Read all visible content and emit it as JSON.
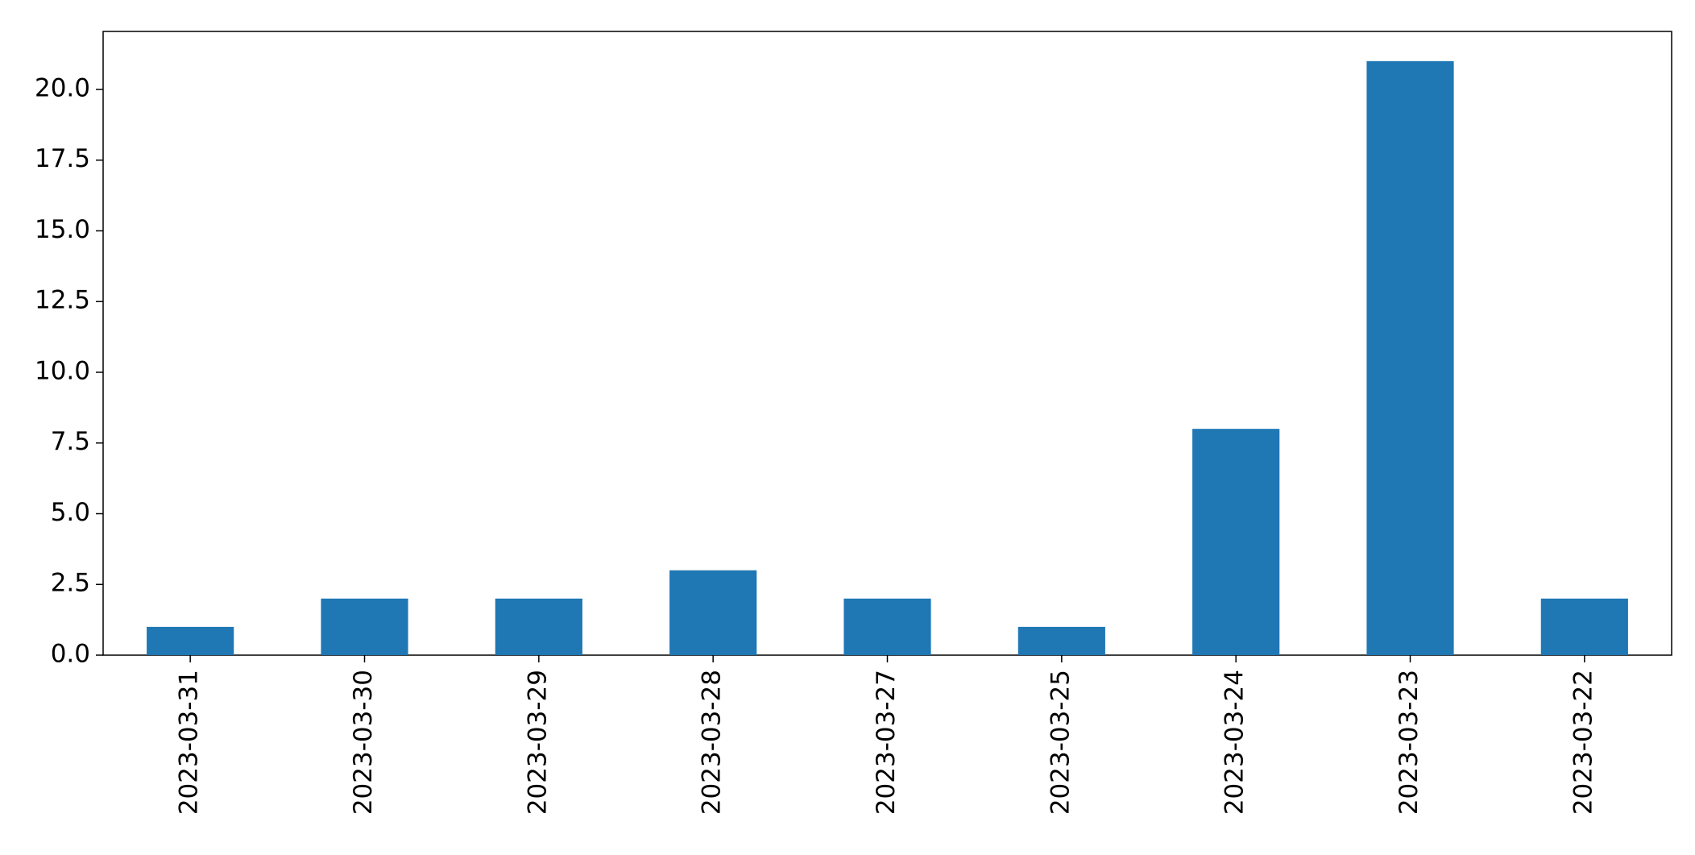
{
  "chart_data": {
    "type": "bar",
    "categories": [
      "2023-03-31",
      "2023-03-30",
      "2023-03-29",
      "2023-03-28",
      "2023-03-27",
      "2023-03-25",
      "2023-03-24",
      "2023-03-23",
      "2023-03-22"
    ],
    "values": [
      1,
      2,
      2,
      3,
      2,
      1,
      8,
      21,
      2
    ],
    "color": "#1f77b4",
    "ylim": [
      0,
      22.05
    ],
    "yticks": [
      {
        "value": 0,
        "label": "0.0"
      },
      2.5,
      {
        "value": 5,
        "label": "5.0"
      },
      7.5,
      {
        "value": 10,
        "label": "10.0"
      },
      12.5,
      {
        "value": 15,
        "label": "15.0"
      },
      17.5,
      {
        "value": 20,
        "label": "20.0"
      }
    ],
    "grid": false
  }
}
